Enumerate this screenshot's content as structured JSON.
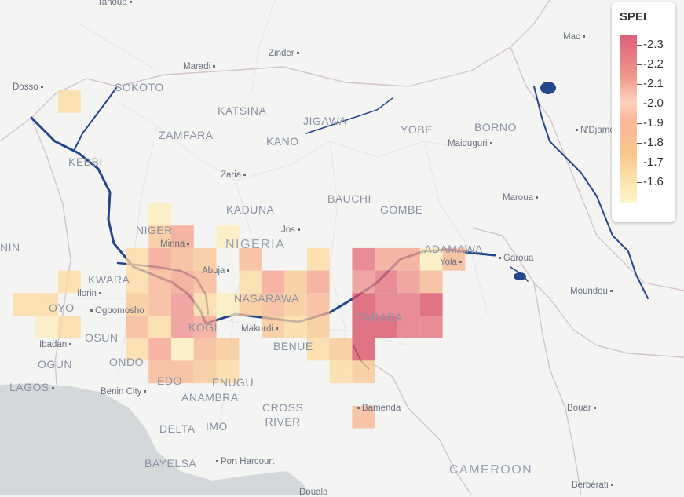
{
  "legend": {
    "title": "SPEI",
    "ticks": [
      "-2.3",
      "-2.2",
      "-2.1",
      "-2.0",
      "-1.9",
      "-1.8",
      "-1.7",
      "-1.6"
    ]
  },
  "labels": {
    "tahoua": "Tahoua",
    "mao": "Mao",
    "maradi": "Maradi",
    "zinder": "Zinder",
    "dosso": "Dosso",
    "sokoto": "SOKOTO",
    "katsina": "KATSINA",
    "jigawa": "JIGAWA",
    "yobe": "YOBE",
    "borno": "BORNO",
    "ndjamena": "N'Djamena",
    "zamfara": "ZAMFARA",
    "kano": "KANO",
    "maiduguri": "Maiduguri",
    "kebbi": "KEBBI",
    "zaria": "Zaria",
    "bauchi": "BAUCHI",
    "maroua": "Maroua",
    "kaduna": "KADUNA",
    "gombe": "GOMBE",
    "niger": "NIGER",
    "jos": "Jos",
    "nigeria": "NIGERIA",
    "minna": "Minna",
    "adamawa": "ADAMAWA",
    "garoua": "Garoua",
    "yola": "Yola",
    "benin_country": "NIN",
    "abuja": "Abuja",
    "kwara": "KWARA",
    "ilorin": "Ilorin",
    "nasarawa": "NASARAWA",
    "moundou": "Moundou",
    "oyo": "OYO",
    "ogbomosho": "Ogbomosho",
    "taraba": "TARABA",
    "osun": "OSUN",
    "kogi": "KOGI",
    "makurdi": "Makurdi",
    "ibadan": "Ibadan",
    "benue": "BENUE",
    "ogun": "OGUN",
    "ondo": "ONDO",
    "lagos": "LAGOS",
    "edo": "EDO",
    "enugu": "ENUGU",
    "benin_city": "Benin City",
    "anambra": "ANAMBRA",
    "bamenda": "Bamenda",
    "bouar": "Bouar",
    "cross_river": "CROSS\nRIVER",
    "delta": "DELTA",
    "imo": "IMO",
    "bayelsa": "BAYELSA",
    "port_harcourt": "Port Harcourt",
    "cameroon": "CAMEROON",
    "berberati": "Berbérati",
    "douala": "Douala"
  },
  "spei_colors": {
    "-2.3": "#d9485f",
    "-2.2": "#e46a75",
    "-2.1": "#ef8c87",
    "-2.0": "#f7a08a",
    "-1.9": "#fab48f",
    "-1.8": "#fbc58f",
    "-1.7": "#fdd99f",
    "-1.6": "#feedb8"
  },
  "grid_cells": [
    {
      "col": 0,
      "row": 0,
      "spei": -1.7
    },
    {
      "col": 4,
      "row": 5,
      "spei": -1.6
    },
    {
      "col": 4,
      "row": 6,
      "spei": -1.8
    },
    {
      "col": 5,
      "row": 6,
      "spei": -2.0
    },
    {
      "col": 7,
      "row": 6,
      "spei": -1.6
    },
    {
      "col": 3,
      "row": 7,
      "spei": -1.7
    },
    {
      "col": 4,
      "row": 7,
      "spei": -2.0
    },
    {
      "col": 5,
      "row": 7,
      "spei": -1.9
    },
    {
      "col": 6,
      "row": 7,
      "spei": -1.8
    },
    {
      "col": 8,
      "row": 7,
      "spei": -1.9
    },
    {
      "col": 11,
      "row": 7,
      "spei": -1.7
    },
    {
      "col": 13,
      "row": 7,
      "spei": -2.2
    },
    {
      "col": 14,
      "row": 7,
      "spei": -2.0
    },
    {
      "col": 15,
      "row": 7,
      "spei": -2.0
    },
    {
      "col": 16,
      "row": 7,
      "spei": -1.6
    },
    {
      "col": 17,
      "row": 7,
      "spei": -1.9
    },
    {
      "col": 0,
      "row": 8,
      "spei": -1.7
    },
    {
      "col": 3,
      "row": 8,
      "spei": -1.7
    },
    {
      "col": 4,
      "row": 8,
      "spei": -1.9
    },
    {
      "col": 5,
      "row": 8,
      "spei": -2.0
    },
    {
      "col": 6,
      "row": 8,
      "spei": -1.9
    },
    {
      "col": 8,
      "row": 8,
      "spei": -1.7
    },
    {
      "col": 9,
      "row": 8,
      "spei": -2.0
    },
    {
      "col": 10,
      "row": 8,
      "spei": -1.8
    },
    {
      "col": 11,
      "row": 8,
      "spei": -2.0
    },
    {
      "col": 13,
      "row": 8,
      "spei": -2.1
    },
    {
      "col": 14,
      "row": 8,
      "spei": -2.2
    },
    {
      "col": 15,
      "row": 8,
      "spei": -2.1
    },
    {
      "col": 16,
      "row": 8,
      "spei": -1.9
    },
    {
      "col": -2,
      "row": 9,
      "spei": -1.7
    },
    {
      "col": -1,
      "row": 9,
      "spei": -1.7
    },
    {
      "col": 3,
      "row": 9,
      "spei": -1.8
    },
    {
      "col": 4,
      "row": 9,
      "spei": -1.9
    },
    {
      "col": 5,
      "row": 9,
      "spei": -2.1
    },
    {
      "col": 6,
      "row": 9,
      "spei": -1.7
    },
    {
      "col": 7,
      "row": 9,
      "spei": -1.6
    },
    {
      "col": 8,
      "row": 9,
      "spei": -1.8
    },
    {
      "col": 9,
      "row": 9,
      "spei": -1.9
    },
    {
      "col": 10,
      "row": 9,
      "spei": -1.8
    },
    {
      "col": 11,
      "row": 9,
      "spei": -1.9
    },
    {
      "col": 13,
      "row": 9,
      "spei": -2.3
    },
    {
      "col": 14,
      "row": 9,
      "spei": -2.2
    },
    {
      "col": 15,
      "row": 9,
      "spei": -2.2
    },
    {
      "col": 16,
      "row": 9,
      "spei": -2.3
    },
    {
      "col": -1,
      "row": 10,
      "spei": -1.6
    },
    {
      "col": 0,
      "row": 10,
      "spei": -1.7
    },
    {
      "col": 3,
      "row": 10,
      "spei": -1.9
    },
    {
      "col": 4,
      "row": 10,
      "spei": -1.7
    },
    {
      "col": 5,
      "row": 10,
      "spei": -2.1
    },
    {
      "col": 6,
      "row": 10,
      "spei": -2.0
    },
    {
      "col": 9,
      "row": 10,
      "spei": -1.8
    },
    {
      "col": 10,
      "row": 10,
      "spei": -1.7
    },
    {
      "col": 11,
      "row": 10,
      "spei": -1.8
    },
    {
      "col": 13,
      "row": 10,
      "spei": -2.3
    },
    {
      "col": 14,
      "row": 10,
      "spei": -2.3
    },
    {
      "col": 15,
      "row": 10,
      "spei": -2.2
    },
    {
      "col": 16,
      "row": 10,
      "spei": -2.2
    },
    {
      "col": 3,
      "row": 11,
      "spei": -1.7
    },
    {
      "col": 4,
      "row": 11,
      "spei": -2.0
    },
    {
      "col": 5,
      "row": 11,
      "spei": -1.6
    },
    {
      "col": 6,
      "row": 11,
      "spei": -1.9
    },
    {
      "col": 7,
      "row": 11,
      "spei": -1.8
    },
    {
      "col": 11,
      "row": 11,
      "spei": -1.7
    },
    {
      "col": 12,
      "row": 11,
      "spei": -1.8
    },
    {
      "col": 13,
      "row": 11,
      "spei": -2.3
    },
    {
      "col": 4,
      "row": 12,
      "spei": -1.9
    },
    {
      "col": 5,
      "row": 12,
      "spei": -1.9
    },
    {
      "col": 6,
      "row": 12,
      "spei": -1.8
    },
    {
      "col": 7,
      "row": 12,
      "spei": -1.7
    },
    {
      "col": 12,
      "row": 12,
      "spei": -1.7
    },
    {
      "col": 13,
      "row": 12,
      "spei": -1.8
    },
    {
      "col": 13,
      "row": 14,
      "spei": -1.9
    }
  ]
}
